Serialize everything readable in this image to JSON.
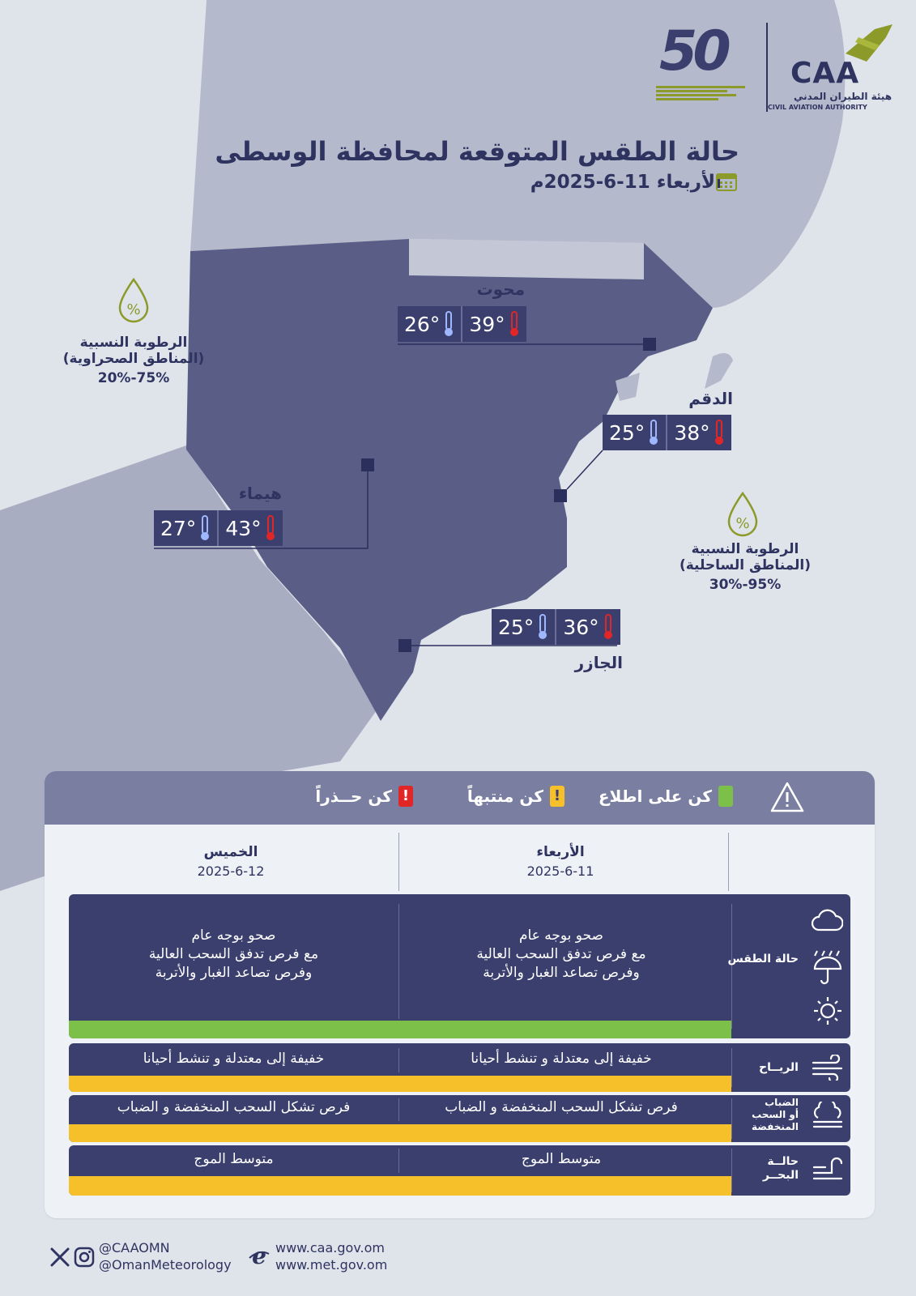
{
  "header": {
    "title": "حالة الطقس المتوقعة لمحافظة الوسطى",
    "date": "الأربعاء 11-6-2025م",
    "icons": {
      "calendar": "calendar-icon"
    }
  },
  "logos": {
    "caa": {
      "name": "CAA",
      "arabic": "هيئة الطيران المدني",
      "english": "CIVIL AVIATION AUTHORITY"
    },
    "anniversary": "50"
  },
  "cities": [
    {
      "name": "محوت",
      "max": "39°",
      "min": "26°"
    },
    {
      "name": "الدقم",
      "max": "38°",
      "min": "25°"
    },
    {
      "name": "هيماء",
      "max": "43°",
      "min": "27°"
    },
    {
      "name": "الجازر",
      "max": "36°",
      "min": "25°"
    }
  ],
  "humidity": {
    "desert": {
      "title": "الرطوبة النسبية",
      "area": "(المناطق الصحراوية)",
      "value": "75%-20%"
    },
    "coastal": {
      "title": "الرطوبة النسبية",
      "area": "(المناطق الساحلية)",
      "value": "95%-30%"
    }
  },
  "legend": {
    "items": [
      {
        "label": "كن على اطلاع",
        "color": "#7cc04a"
      },
      {
        "label": "كن منتبهاً",
        "color": "#f6c02a"
      },
      {
        "label": "كن حــذراً",
        "color": "#e02626"
      }
    ],
    "icon": "warning-triangle-icon"
  },
  "days": [
    {
      "name": "الأربعاء",
      "date": "2025-6-11"
    },
    {
      "name": "الخميس",
      "date": "2025-6-12"
    }
  ],
  "rows": [
    {
      "label": "حالة الطقس",
      "day1": "صحو بوجه عام\nمع فرص تدفق السحب العالية\nوفرص تصاعد الغبار والأتربة",
      "day2": "صحو بوجه عام\nمع فرص تدفق السحب العالية\nوفرص تصاعد الغبار والأتربة",
      "color": "#7cc04a",
      "icons": [
        "cloud-icon",
        "rain-umbrella-icon",
        "sun-icon"
      ]
    },
    {
      "label": "الريــاح",
      "day1": "خفيفة إلى معتدلة  و تنشط أحيانا",
      "day2": "خفيفة إلى معتدلة  و تنشط أحيانا",
      "color": "#f6c02a",
      "icons": [
        "wind-icon"
      ]
    },
    {
      "label": "الضباب\nأو السحب\nالمنخفضة",
      "day1": "فرص تشكل السحب المنخفضة و الضباب",
      "day2": "فرص تشكل السحب المنخفضة و الضباب",
      "color": "#f6c02a",
      "icons": [
        "fog-icon"
      ]
    },
    {
      "label": "حالــة\nالبحــر",
      "day1": "متوسط الموج",
      "day2": "متوسط  الموج",
      "color": "#f6c02a",
      "icons": [
        "wave-icon"
      ]
    }
  ],
  "footer": {
    "social": [
      "@CAAOMN",
      "@OmanMeteorology"
    ],
    "web": [
      "www.caa.gov.om",
      "www.met.gov.om"
    ],
    "icons": [
      "x-icon",
      "instagram-icon",
      "web-icon"
    ]
  }
}
